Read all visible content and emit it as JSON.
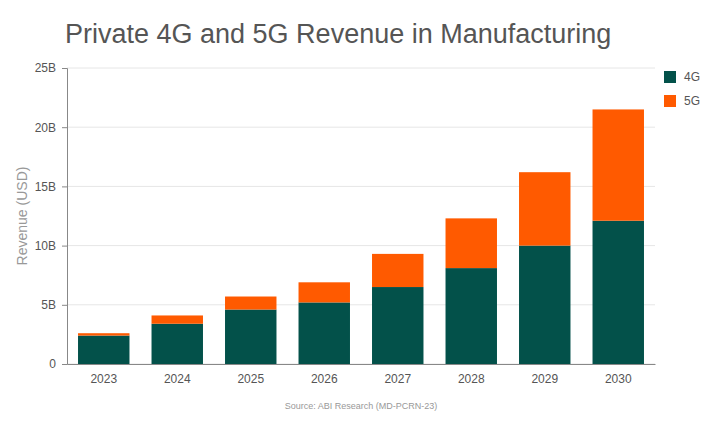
{
  "chart_data": {
    "type": "bar",
    "stacked": true,
    "title": "Private 4G and 5G Revenue in Manufacturing",
    "y_label": "Revenue (USD)",
    "source": "Source: ABI Research (MD-PCRN-23)",
    "categories": [
      "2023",
      "2024",
      "2025",
      "2026",
      "2027",
      "2028",
      "2029",
      "2030"
    ],
    "series": [
      {
        "name": "4G",
        "color": "#03514a",
        "values": [
          2.4,
          3.4,
          4.6,
          5.2,
          6.5,
          8.1,
          10.0,
          12.1
        ]
      },
      {
        "name": "5G",
        "color": "#ff5a00",
        "values": [
          0.2,
          0.7,
          1.1,
          1.7,
          2.8,
          4.2,
          6.2,
          9.4
        ]
      }
    ],
    "ylim": [
      0,
      25
    ],
    "yticks": [
      0,
      {
        "value": 5,
        "label": "5B"
      },
      {
        "value": 10,
        "label": "10B"
      },
      {
        "value": 15,
        "label": "15B"
      },
      {
        "value": 20,
        "label": "20B"
      },
      {
        "value": 25,
        "label": "25B"
      }
    ],
    "grid": true,
    "legend": "right"
  }
}
